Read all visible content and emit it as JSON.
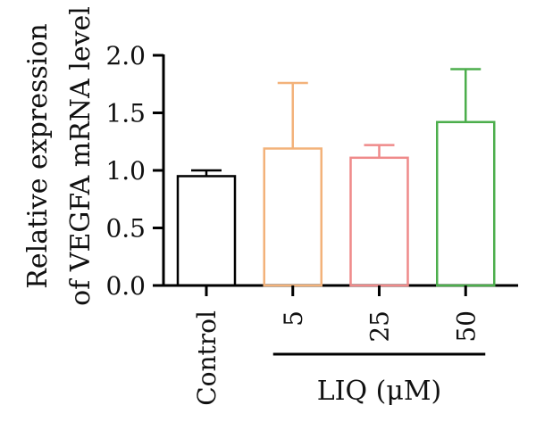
{
  "chart_data": {
    "type": "bar",
    "categories": [
      "Control",
      "5",
      "25",
      "50"
    ],
    "values": [
      0.95,
      1.19,
      1.11,
      1.42
    ],
    "errors_upper": [
      1.0,
      1.76,
      1.22,
      1.88
    ],
    "colors": [
      "#000000",
      "#f3b27a",
      "#ef8a8a",
      "#4cae4c"
    ],
    "ylabel_lines": [
      "Relative expression",
      "of VEGFA mRNA level"
    ],
    "yticks": [
      "0.0",
      "0.5",
      "1.0",
      "1.5",
      "2.0"
    ],
    "ylim": [
      0,
      2.0
    ],
    "group_label": "LIQ (μM)",
    "group_members": [
      "5",
      "25",
      "50"
    ],
    "grid": false,
    "legend": "none"
  }
}
